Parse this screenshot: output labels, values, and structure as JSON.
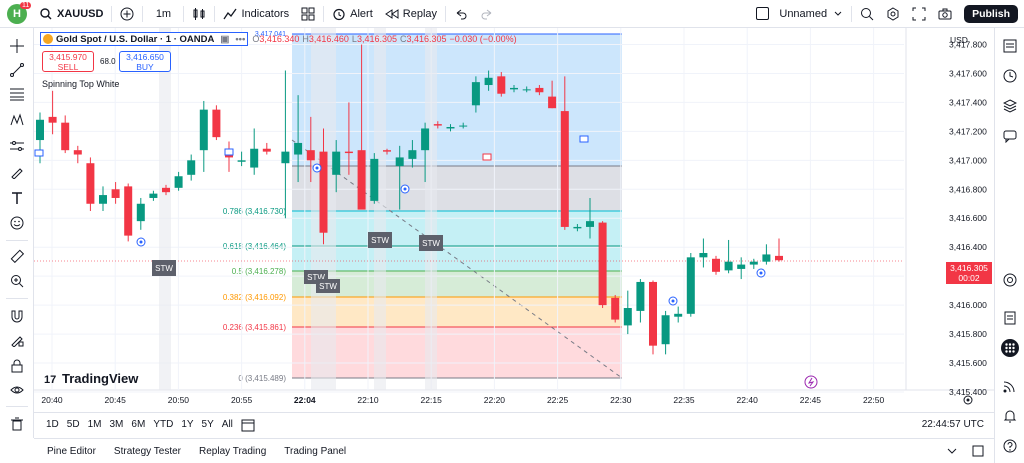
{
  "topbar": {
    "avatar_letter": "H",
    "avatar_badge": "11",
    "symbol": "XAUUSD",
    "interval": "1m",
    "indicators_label": "Indicators",
    "alert_label": "Alert",
    "replay_label": "Replay",
    "layout_name": "Unnamed",
    "publish_label": "Publish"
  },
  "legend": {
    "title": "Gold Spot / U.S. Dollar · 1 · OANDA",
    "o_label": "O",
    "o_value": "3,416.340",
    "h_label": "H",
    "h_value": "3,416.460",
    "l_label": "L",
    "l_value": "3,416.305",
    "c_label": "C",
    "c_value": "3,416.305",
    "change": "−0.030 (−0.00%)",
    "sell_price": "3,415.970",
    "sell_label": "SELL",
    "spread": "68.0",
    "buy_price": "3,416.650",
    "buy_label": "BUY",
    "indicator_name": "Spinning Top White"
  },
  "price_scale": {
    "currency": "USD",
    "current_price": "3,416.305",
    "countdown": "00:02",
    "top_partial": "3,417.041"
  },
  "fib_levels": [
    {
      "label": "0.786 (3,416.730)",
      "color": "#089981"
    },
    {
      "label": "0.618 (3,416.464)",
      "color": "#089981"
    },
    {
      "label": "0.5 (3,416.278)",
      "color": "#4caf50"
    },
    {
      "label": "0.382 (3,416.092)",
      "color": "#ff9800"
    },
    {
      "label": "0.236 (3,415.861)",
      "color": "#f23645"
    },
    {
      "label": "0 (3,415.489)",
      "color": "#787b86"
    }
  ],
  "stw_labels": [
    "STW",
    "STW",
    "STW",
    "STW",
    "STW"
  ],
  "watermark": "TradingView",
  "chart_data": {
    "type": "candlestick",
    "symbol": "Gold Spot / U.S. Dollar",
    "y_ticks": [
      "3,417.800",
      "3,417.600",
      "3,417.400",
      "3,417.200",
      "3,417.000",
      "3,416.800",
      "3,416.600",
      "3,416.400",
      "3,416.200",
      "3,416.000",
      "3,415.800",
      "3,415.600",
      "3,415.400"
    ],
    "x_ticks": [
      "20:40",
      "20:45",
      "20:50",
      "20:55",
      "22:04",
      "22:10",
      "22:15",
      "22:20",
      "22:25",
      "22:30",
      "22:35",
      "22:40",
      "22:45",
      "22:50"
    ],
    "ylim": [
      3415.4,
      3417.9
    ],
    "candles": [
      {
        "o": 3417.14,
        "h": 3417.33,
        "l": 3416.98,
        "c": 3417.28
      },
      {
        "o": 3417.3,
        "h": 3417.48,
        "l": 3417.18,
        "c": 3417.26
      },
      {
        "o": 3417.26,
        "h": 3417.31,
        "l": 3417.05,
        "c": 3417.07
      },
      {
        "o": 3417.07,
        "h": 3417.1,
        "l": 3416.98,
        "c": 3417.04
      },
      {
        "o": 3416.98,
        "h": 3417.02,
        "l": 3416.65,
        "c": 3416.7
      },
      {
        "o": 3416.7,
        "h": 3416.82,
        "l": 3416.65,
        "c": 3416.76
      },
      {
        "o": 3416.8,
        "h": 3416.85,
        "l": 3416.7,
        "c": 3416.74
      },
      {
        "o": 3416.82,
        "h": 3416.84,
        "l": 3416.44,
        "c": 3416.48
      },
      {
        "o": 3416.58,
        "h": 3416.74,
        "l": 3416.52,
        "c": 3416.7
      },
      {
        "o": 3416.74,
        "h": 3416.79,
        "l": 3416.72,
        "c": 3416.77
      },
      {
        "o": 3416.81,
        "h": 3416.83,
        "l": 3416.76,
        "c": 3416.78
      },
      {
        "o": 3416.81,
        "h": 3416.92,
        "l": 3416.79,
        "c": 3416.89
      },
      {
        "o": 3416.9,
        "h": 3417.04,
        "l": 3416.86,
        "c": 3417.0
      },
      {
        "o": 3417.07,
        "h": 3417.41,
        "l": 3416.92,
        "c": 3417.35
      },
      {
        "o": 3417.35,
        "h": 3417.38,
        "l": 3417.14,
        "c": 3417.16
      },
      {
        "o": 3417.08,
        "h": 3417.13,
        "l": 3416.92,
        "c": 3417.02
      },
      {
        "o": 3416.99,
        "h": 3417.06,
        "l": 3416.96,
        "c": 3417.0
      },
      {
        "o": 3416.95,
        "h": 3417.22,
        "l": 3416.9,
        "c": 3417.08
      },
      {
        "o": 3417.08,
        "h": 3417.12,
        "l": 3417.04,
        "c": 3417.06
      },
      {
        "o": 3416.98,
        "h": 3417.62,
        "l": 3416.6,
        "c": 3417.06
      },
      {
        "o": 3417.04,
        "h": 3417.45,
        "l": 3416.85,
        "c": 3417.12
      },
      {
        "o": 3417.07,
        "h": 3417.3,
        "l": 3416.85,
        "c": 3417.0
      },
      {
        "o": 3417.06,
        "h": 3417.22,
        "l": 3416.42,
        "c": 3416.5
      },
      {
        "o": 3416.9,
        "h": 3417.14,
        "l": 3416.78,
        "c": 3417.06
      },
      {
        "o": 3417.06,
        "h": 3417.4,
        "l": 3416.9,
        "c": 3417.05
      },
      {
        "o": 3417.07,
        "h": 3417.8,
        "l": 3416.66,
        "c": 3416.66
      },
      {
        "o": 3416.72,
        "h": 3417.05,
        "l": 3416.7,
        "c": 3417.01
      },
      {
        "o": 3417.07,
        "h": 3417.08,
        "l": 3417.04,
        "c": 3417.06
      },
      {
        "o": 3416.96,
        "h": 3417.1,
        "l": 3416.66,
        "c": 3417.02
      },
      {
        "o": 3417.01,
        "h": 3417.14,
        "l": 3416.95,
        "c": 3417.07
      },
      {
        "o": 3417.07,
        "h": 3417.26,
        "l": 3416.85,
        "c": 3417.22
      },
      {
        "o": 3417.25,
        "h": 3417.27,
        "l": 3417.22,
        "c": 3417.24
      },
      {
        "o": 3417.22,
        "h": 3417.25,
        "l": 3417.2,
        "c": 3417.23
      },
      {
        "o": 3417.24,
        "h": 3417.26,
        "l": 3417.22,
        "c": 3417.24
      },
      {
        "o": 3417.38,
        "h": 3417.58,
        "l": 3417.33,
        "c": 3417.54
      },
      {
        "o": 3417.52,
        "h": 3417.62,
        "l": 3417.48,
        "c": 3417.57
      },
      {
        "o": 3417.58,
        "h": 3417.61,
        "l": 3417.44,
        "c": 3417.46
      },
      {
        "o": 3417.49,
        "h": 3417.52,
        "l": 3417.47,
        "c": 3417.5
      },
      {
        "o": 3417.49,
        "h": 3417.51,
        "l": 3417.47,
        "c": 3417.49
      },
      {
        "o": 3417.5,
        "h": 3417.52,
        "l": 3417.45,
        "c": 3417.47
      },
      {
        "o": 3417.44,
        "h": 3417.55,
        "l": 3417.36,
        "c": 3417.36
      },
      {
        "o": 3417.34,
        "h": 3417.58,
        "l": 3416.52,
        "c": 3416.54
      },
      {
        "o": 3416.53,
        "h": 3416.56,
        "l": 3416.51,
        "c": 3416.54
      },
      {
        "o": 3416.54,
        "h": 3416.74,
        "l": 3416.46,
        "c": 3416.58
      },
      {
        "o": 3416.57,
        "h": 3416.58,
        "l": 3415.98,
        "c": 3416.0
      },
      {
        "o": 3416.05,
        "h": 3416.07,
        "l": 3415.88,
        "c": 3415.9
      },
      {
        "o": 3415.86,
        "h": 3416.1,
        "l": 3415.8,
        "c": 3415.98
      },
      {
        "o": 3415.96,
        "h": 3416.18,
        "l": 3415.88,
        "c": 3416.16
      },
      {
        "o": 3416.16,
        "h": 3416.17,
        "l": 3415.66,
        "c": 3415.72
      },
      {
        "o": 3415.73,
        "h": 3415.96,
        "l": 3415.66,
        "c": 3415.93
      },
      {
        "o": 3415.92,
        "h": 3415.99,
        "l": 3415.88,
        "c": 3415.94
      },
      {
        "o": 3415.94,
        "h": 3416.36,
        "l": 3415.92,
        "c": 3416.33
      },
      {
        "o": 3416.33,
        "h": 3416.46,
        "l": 3416.26,
        "c": 3416.36
      },
      {
        "o": 3416.32,
        "h": 3416.34,
        "l": 3416.21,
        "c": 3416.23
      },
      {
        "o": 3416.24,
        "h": 3416.45,
        "l": 3416.22,
        "c": 3416.3
      },
      {
        "o": 3416.25,
        "h": 3416.33,
        "l": 3416.18,
        "c": 3416.28
      },
      {
        "o": 3416.28,
        "h": 3416.32,
        "l": 3416.25,
        "c": 3416.3
      },
      {
        "o": 3416.3,
        "h": 3416.42,
        "l": 3416.28,
        "c": 3416.35
      },
      {
        "o": 3416.34,
        "h": 3416.46,
        "l": 3416.3,
        "c": 3416.31
      }
    ]
  },
  "bottombar": {
    "ranges": [
      "1D",
      "5D",
      "1M",
      "3M",
      "6M",
      "YTD",
      "1Y",
      "5Y",
      "All"
    ],
    "time": "22:44:57 UTC"
  },
  "footer": {
    "tabs": [
      "Pine Editor",
      "Strategy Tester",
      "Replay Trading",
      "Trading Panel"
    ]
  },
  "colors": {
    "up": "#089981",
    "down": "#f23645",
    "accent": "#2962ff"
  }
}
